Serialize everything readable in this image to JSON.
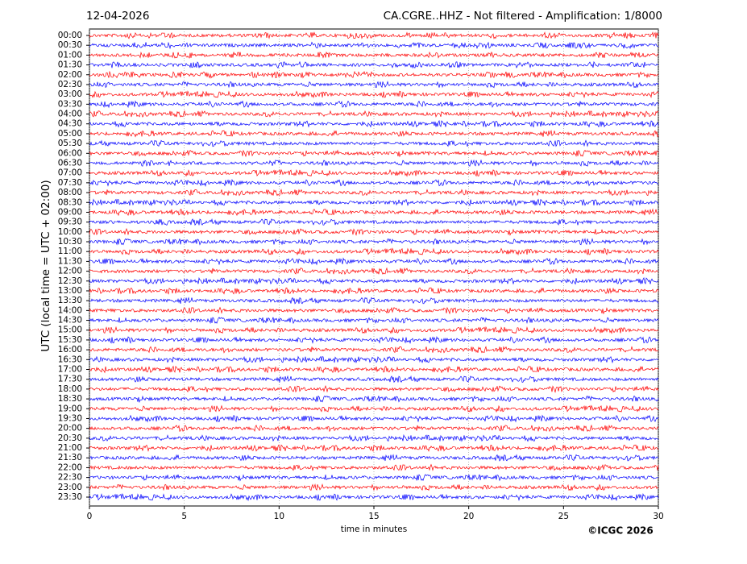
{
  "chart_data": {
    "type": "helicorder",
    "date": "12-04-2026",
    "title": "CA.CGRE..HHZ - Not filtered - Amplification: 1/8000",
    "ylabel": "UTC (local time = UTC + 02:00)",
    "xlabel": "time in minutes",
    "credit": "©ICGC 2026",
    "categories": [
      "00:00",
      "00:30",
      "01:00",
      "01:30",
      "02:00",
      "02:30",
      "03:00",
      "03:30",
      "04:00",
      "04:30",
      "05:00",
      "05:30",
      "06:00",
      "06:30",
      "07:00",
      "07:30",
      "08:00",
      "08:30",
      "09:00",
      "09:30",
      "10:00",
      "10:30",
      "11:00",
      "11:30",
      "12:00",
      "12:30",
      "13:00",
      "13:30",
      "14:00",
      "14:30",
      "15:00",
      "15:30",
      "16:00",
      "16:30",
      "17:00",
      "17:30",
      "18:00",
      "18:30",
      "19:00",
      "19:30",
      "20:00",
      "20:30",
      "21:00",
      "21:30",
      "22:00",
      "22:30",
      "23:00",
      "23:30"
    ],
    "colors": [
      "#ff0000",
      "#0000ff"
    ],
    "xlim": [
      0,
      30
    ],
    "xticks": [
      0,
      5,
      10,
      15,
      20,
      25,
      30
    ],
    "grid": true
  }
}
